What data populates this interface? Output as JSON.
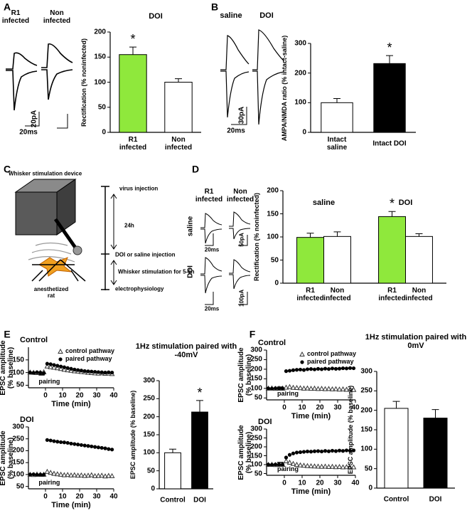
{
  "panel_labels": [
    "A",
    "B",
    "C",
    "D",
    "E",
    "F"
  ],
  "traces": {
    "A": {
      "columns": [
        "R1 infected",
        "Non infected"
      ],
      "scale": [
        "20pA",
        "20ms"
      ]
    },
    "B": {
      "columns": [
        "saline",
        "DOI"
      ],
      "scale": [
        "30pA",
        "20ms"
      ]
    },
    "D": {
      "columns": [
        "R1 infected",
        "Non infected"
      ],
      "rows": [
        "saline",
        "DOI"
      ],
      "scales": [
        [
          "50pA",
          "20ms"
        ],
        [
          "100pA",
          "20ms"
        ]
      ]
    }
  },
  "diagram": {
    "device_label": "Whisker stimulation device",
    "timeline": [
      "virus injection",
      "24h",
      "DOI or saline injection",
      "Whisker stimulation for 5-6h",
      "electrophysiology"
    ],
    "subject_label": "anesthetized rat"
  },
  "chart_data": [
    {
      "type": "bar",
      "title": "DOI",
      "ylabel": "Rectification (% noninfected)",
      "categories": [
        "R1 infected",
        "Non infected"
      ],
      "values": [
        155,
        100
      ],
      "errors": [
        15,
        7
      ],
      "colors": [
        "#8fe83c",
        "#ffffff"
      ],
      "significance": [
        "*",
        null
      ],
      "ylim": [
        0,
        200
      ],
      "yticks": [
        0,
        50,
        100,
        150,
        200
      ]
    },
    {
      "type": "bar",
      "ylabel": "AMPA/NMDA ratio (% intact-saline)",
      "categories": [
        "Intact saline",
        "Intact DOI"
      ],
      "values": [
        100,
        232
      ],
      "errors": [
        14,
        27
      ],
      "colors": [
        "#ffffff",
        "#000000"
      ],
      "significance": [
        null,
        "*"
      ],
      "ylim": [
        0,
        300
      ],
      "yticks": [
        0,
        100,
        200,
        300
      ]
    },
    {
      "type": "grouped_bar",
      "ylabel": "Rectification (% noninfected)",
      "categories": [
        "saline",
        "DOI"
      ],
      "series": [
        {
          "name": "R1 infected",
          "color": "#8fe83c",
          "values": [
            99,
            144
          ],
          "errors": [
            9,
            11
          ]
        },
        {
          "name": "Non infected",
          "color": "#ffffff",
          "values": [
            101,
            101
          ],
          "errors": [
            10,
            6
          ]
        }
      ],
      "significance": [
        null,
        "*"
      ],
      "ylim": [
        0,
        200
      ],
      "yticks": [
        0,
        50,
        100,
        150,
        200
      ]
    },
    {
      "type": "scatter",
      "title": "Control",
      "xlabel": "Time (min)",
      "ylabel": "EPSC amplitude (% baseline)",
      "annotation": "pairing",
      "legend": "upper right",
      "x": [
        -9,
        -7,
        -5,
        -3,
        -1,
        1,
        3,
        5,
        7,
        9,
        11,
        13,
        15,
        17,
        19,
        21,
        23,
        25,
        27,
        29,
        31,
        33,
        35,
        37,
        39
      ],
      "series": [
        {
          "name": "control pathway",
          "color": "#333333",
          "marker": "triangle",
          "values": [
            101,
            100,
            99,
            100,
            102,
            125,
            122,
            120,
            118,
            115,
            112,
            110,
            108,
            106,
            105,
            103,
            102,
            100,
            99,
            98,
            97,
            98,
            96,
            97,
            95
          ]
        },
        {
          "name": "paired pathway",
          "color": "#000000",
          "marker": "circle",
          "values": [
            100,
            99,
            101,
            100,
            98,
            135,
            133,
            130,
            127,
            124,
            121,
            118,
            115,
            112,
            110,
            108,
            106,
            105,
            104,
            103,
            102,
            101,
            100,
            101,
            100
          ]
        }
      ],
      "xlim": [
        -10,
        40
      ],
      "xticks": [
        0,
        10,
        20,
        30,
        40
      ],
      "ylim": [
        40,
        200
      ],
      "yticks": [
        50,
        100,
        150
      ]
    },
    {
      "type": "scatter",
      "title": "DOI",
      "xlabel": "Time (min)",
      "ylabel": "EPSC amplitude (% baseline)",
      "annotation": "pairing",
      "x": [
        -9,
        -7,
        -5,
        -3,
        -1,
        1,
        3,
        5,
        7,
        9,
        11,
        13,
        15,
        17,
        19,
        21,
        23,
        25,
        27,
        29,
        31,
        33,
        35,
        37,
        39
      ],
      "series": [
        {
          "color": "#333333",
          "marker": "triangle",
          "values": [
            100,
            99,
            101,
            100,
            100,
            112,
            108,
            104,
            102,
            100,
            98,
            99,
            97,
            98,
            96,
            97,
            95,
            96,
            98,
            94,
            95,
            96,
            93,
            95,
            94
          ]
        },
        {
          "color": "#000000",
          "marker": "circle",
          "values": [
            100,
            101,
            99,
            100,
            100,
            245,
            243,
            240,
            238,
            236,
            235,
            233,
            230,
            228,
            226,
            224,
            222,
            220,
            218,
            216,
            214,
            212,
            210,
            207,
            205
          ]
        }
      ],
      "xlim": [
        -10,
        40
      ],
      "xticks": [
        0,
        10,
        20,
        30,
        40
      ],
      "ylim": [
        40,
        300
      ],
      "yticks": [
        50,
        100,
        150,
        200,
        250,
        300
      ]
    },
    {
      "type": "bar",
      "title": "1Hz stimulation paired with -40mV",
      "ylabel": "EPSC amplitude (% baseline)",
      "categories": [
        "Control",
        "DOI"
      ],
      "values": [
        100,
        213
      ],
      "errors": [
        10,
        32
      ],
      "colors": [
        "#ffffff",
        "#000000"
      ],
      "significance": [
        null,
        "*"
      ],
      "ylim": [
        0,
        300
      ],
      "yticks": [
        0,
        50,
        100,
        150,
        200,
        250,
        300
      ]
    },
    {
      "type": "scatter",
      "title": "Control",
      "xlabel": "Time (min)",
      "ylabel": "EPSC amplitude (% baseline)",
      "annotation": "pairing",
      "legend": "upper right",
      "x": [
        -9,
        -7,
        -5,
        -3,
        -1,
        1,
        3,
        5,
        7,
        9,
        11,
        13,
        15,
        17,
        19,
        21,
        23,
        25,
        27,
        29,
        31,
        33,
        35,
        37,
        39
      ],
      "series": [
        {
          "name": "control pathway",
          "color": "#333333",
          "marker": "triangle",
          "values": [
            100,
            101,
            99,
            100,
            100,
            105,
            108,
            104,
            103,
            102,
            100,
            101,
            99,
            100,
            98,
            99,
            97,
            98,
            96,
            97,
            95,
            96,
            94,
            95,
            93
          ]
        },
        {
          "name": "paired pathway",
          "color": "#000000",
          "marker": "circle",
          "values": [
            100,
            99,
            101,
            100,
            100,
            190,
            192,
            195,
            197,
            198,
            196,
            200,
            201,
            199,
            202,
            200,
            203,
            201,
            204,
            202,
            203,
            205,
            204,
            206,
            205
          ]
        }
      ],
      "xlim": [
        -10,
        40
      ],
      "xticks": [
        0,
        10,
        20,
        30,
        40
      ],
      "ylim": [
        40,
        300
      ],
      "yticks": [
        50,
        100,
        150,
        200,
        250,
        300
      ]
    },
    {
      "type": "scatter",
      "title": "DOI",
      "xlabel": "Time (min)",
      "ylabel": "EPSC amplitude (% baseline)",
      "annotation": "pairing",
      "x": [
        -9,
        -7,
        -5,
        -3,
        -1,
        1,
        3,
        5,
        7,
        9,
        11,
        13,
        15,
        17,
        19,
        21,
        23,
        25,
        27,
        29,
        31,
        33,
        35,
        37,
        39
      ],
      "series": [
        {
          "color": "#333333",
          "marker": "triangle",
          "values": [
            100,
            101,
            99,
            100,
            100,
            120,
            112,
            105,
            100,
            97,
            95,
            93,
            92,
            91,
            90,
            89,
            90,
            88,
            89,
            87,
            88,
            86,
            87,
            85,
            86
          ]
        },
        {
          "color": "#000000",
          "marker": "circle",
          "values": [
            100,
            99,
            101,
            100,
            100,
            140,
            155,
            163,
            168,
            170,
            172,
            174,
            173,
            175,
            176,
            174,
            177,
            175,
            178,
            176,
            179,
            177,
            180,
            178,
            180
          ]
        }
      ],
      "xlim": [
        -10,
        40
      ],
      "xticks": [
        0,
        10,
        20,
        30,
        40
      ],
      "ylim": [
        40,
        300
      ],
      "yticks": [
        50,
        100,
        150,
        200,
        250,
        300
      ]
    },
    {
      "type": "bar",
      "title": "1Hz stimulation paired with 0mV",
      "ylabel": "EPSC amplitude (% baseline)",
      "categories": [
        "Control",
        "DOI"
      ],
      "values": [
        205,
        180
      ],
      "errors": [
        18,
        22
      ],
      "colors": [
        "#ffffff",
        "#000000"
      ],
      "significance": [
        null,
        null
      ],
      "ylim": [
        0,
        300
      ],
      "yticks": [
        0,
        50,
        100,
        150,
        200,
        250,
        300
      ]
    }
  ]
}
